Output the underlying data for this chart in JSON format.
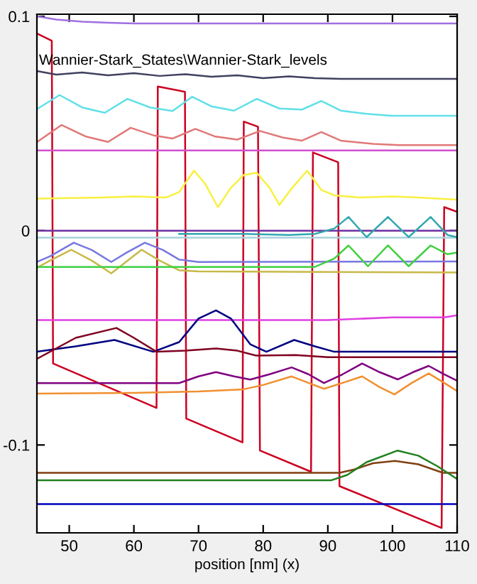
{
  "chart_data": {
    "type": "line",
    "xlabel": "position [nm] (x)",
    "annotations": [
      "Wannier-Stark_States\\Wannier-Stark_levels"
    ],
    "xlim": [
      45,
      110
    ],
    "ylim": [
      -0.141,
      0.101
    ],
    "xticks": [
      50,
      60,
      70,
      80,
      90,
      100,
      110
    ],
    "yticks": [
      -0.1,
      0,
      0.1
    ],
    "grid": false,
    "marker": "none",
    "line_style": "solid",
    "series": [
      {
        "color": "#cc0020",
        "x": [
          45,
          47.3,
          47.5,
          63.5,
          63.7,
          67.9,
          68.1,
          76.8,
          77,
          79.2,
          79.5,
          87.4,
          87.7,
          91.6,
          91.8,
          107.6,
          108,
          110
        ],
        "values": [
          0.092,
          0.0886,
          -0.062,
          -0.0827,
          0.0673,
          0.0648,
          -0.0877,
          -0.0988,
          0.0509,
          0.0485,
          -0.1026,
          -0.1125,
          0.0365,
          0.0319,
          -0.1192,
          -0.1387,
          0.011,
          0.0088
        ]
      },
      {
        "color": "#a070e0",
        "x": [
          45,
          48,
          52,
          56,
          60,
          110
        ],
        "values": [
          0.1,
          0.0985,
          0.0975,
          0.097,
          0.0967,
          0.0967
        ]
      },
      {
        "color": "#404060",
        "x": [
          45,
          48,
          52,
          56,
          60,
          64,
          68,
          72,
          76,
          80,
          84,
          88,
          92,
          110
        ],
        "values": [
          0.0745,
          0.0728,
          0.0738,
          0.0725,
          0.0735,
          0.0722,
          0.073,
          0.0718,
          0.0725,
          0.0712,
          0.072,
          0.0712,
          0.0708,
          0.0708
        ]
      },
      {
        "color": "#60e0e8",
        "x": [
          45,
          48.5,
          52,
          55.5,
          59,
          62.5,
          66,
          69,
          72,
          75.5,
          79,
          82.5,
          86,
          89,
          92,
          96,
          100,
          110
        ],
        "values": [
          0.0567,
          0.0633,
          0.0575,
          0.055,
          0.0615,
          0.0575,
          0.0558,
          0.0625,
          0.058,
          0.056,
          0.0615,
          0.057,
          0.0565,
          0.0605,
          0.056,
          0.0545,
          0.0536,
          0.0536
        ]
      },
      {
        "color": "#e07878",
        "x": [
          45,
          48.8,
          52.5,
          56,
          59.5,
          63,
          66,
          69.5,
          72.5,
          76,
          79.5,
          83,
          86,
          89,
          92,
          97,
          101,
          110
        ],
        "values": [
          0.0413,
          0.0493,
          0.044,
          0.0414,
          0.048,
          0.0445,
          0.043,
          0.0475,
          0.044,
          0.0425,
          0.0465,
          0.0435,
          0.042,
          0.046,
          0.042,
          0.0405,
          0.0399,
          0.0399
        ]
      },
      {
        "color": "#d050d0",
        "x": [
          45,
          110
        ],
        "values": [
          0.0374,
          0.0374
        ]
      },
      {
        "color": "#f8f040",
        "x": [
          45,
          55,
          60,
          65,
          67,
          69.3,
          71,
          73,
          75,
          77,
          79,
          81,
          82.5,
          84.5,
          86.8,
          89,
          91,
          95,
          100,
          104,
          110
        ],
        "values": [
          0.015,
          0.0155,
          0.016,
          0.0155,
          0.018,
          0.028,
          0.022,
          0.011,
          0.02,
          0.026,
          0.027,
          0.02,
          0.012,
          0.02,
          0.028,
          0.019,
          0.0165,
          0.0155,
          0.016,
          0.0155,
          0.0145
        ]
      },
      {
        "color": "#7030a0",
        "x": [
          45,
          110
        ],
        "values": [
          0,
          0
        ]
      },
      {
        "color": "#a8d0dc",
        "x": [
          45,
          110
        ],
        "values": [
          -0.0033,
          -0.0033
        ]
      },
      {
        "color": "#30a8b0",
        "x": [
          67,
          77,
          84,
          88,
          91,
          93.2,
          96,
          99.3,
          102.5,
          105.9,
          108.5,
          110
        ],
        "values": [
          -0.0015,
          -0.0015,
          -0.002,
          -0.0015,
          0.001,
          0.0064,
          -0.003,
          0.0064,
          -0.003,
          0.0064,
          -0.002,
          -0.003
        ]
      },
      {
        "color": "#7878e0",
        "x": [
          45,
          47,
          50.7,
          53.5,
          56.5,
          59,
          61.7,
          64.5,
          67,
          70,
          110
        ],
        "values": [
          -0.0146,
          -0.012,
          -0.0056,
          -0.009,
          -0.0146,
          -0.01,
          -0.0056,
          -0.009,
          -0.0135,
          -0.0146,
          -0.0144
        ]
      },
      {
        "color": "#c8b848",
        "x": [
          45,
          47,
          50.3,
          53.5,
          56.5,
          59,
          61.2,
          64,
          67,
          70,
          110
        ],
        "values": [
          -0.0173,
          -0.014,
          -0.0089,
          -0.014,
          -0.0199,
          -0.014,
          -0.0089,
          -0.014,
          -0.0185,
          -0.019,
          -0.0195
        ]
      },
      {
        "color": "#40d040",
        "x": [
          45,
          88,
          91,
          93.2,
          96.2,
          99.3,
          102.5,
          105.9,
          108.5,
          110
        ],
        "values": [
          -0.0169,
          -0.0169,
          -0.013,
          -0.0069,
          -0.0166,
          -0.0069,
          -0.0166,
          -0.0069,
          -0.011,
          -0.0102
        ]
      },
      {
        "color": "#e040e0",
        "x": [
          45,
          90,
          100,
          108,
          110
        ],
        "values": [
          -0.0417,
          -0.0417,
          -0.0405,
          -0.0405,
          -0.0395
        ]
      },
      {
        "color": "#000080",
        "x": [
          45,
          51,
          57,
          63,
          67,
          70,
          72.7,
          75,
          78,
          80.5,
          84.8,
          88,
          91,
          110
        ],
        "values": [
          -0.0565,
          -0.054,
          -0.051,
          -0.0565,
          -0.052,
          -0.041,
          -0.0372,
          -0.041,
          -0.053,
          -0.0565,
          -0.051,
          -0.054,
          -0.0565,
          -0.0565
        ]
      },
      {
        "color": "#800020",
        "x": [
          45,
          51,
          57.3,
          60,
          63.5,
          68,
          72.7,
          76,
          78.9,
          85,
          90,
          110
        ],
        "values": [
          -0.0598,
          -0.05,
          -0.0454,
          -0.05,
          -0.0565,
          -0.056,
          -0.055,
          -0.056,
          -0.0583,
          -0.058,
          -0.059,
          -0.059
        ]
      },
      {
        "color": "#800080",
        "x": [
          45,
          67,
          70,
          72.7,
          75.5,
          78,
          81,
          84.4,
          87,
          89.4,
          92.3,
          95.3,
          98,
          100.8,
          103.2,
          105.6,
          108,
          110
        ],
        "values": [
          -0.0711,
          -0.0711,
          -0.068,
          -0.066,
          -0.068,
          -0.0695,
          -0.067,
          -0.0638,
          -0.067,
          -0.0711,
          -0.067,
          -0.062,
          -0.066,
          -0.0694,
          -0.066,
          -0.0631,
          -0.067,
          -0.07
        ]
      },
      {
        "color": "#f09030",
        "x": [
          45,
          60,
          70,
          77,
          80,
          84.4,
          87,
          89.4,
          92.3,
          95.3,
          98,
          100.3,
          103,
          105.6,
          108,
          110
        ],
        "values": [
          -0.076,
          -0.0757,
          -0.075,
          -0.074,
          -0.072,
          -0.068,
          -0.071,
          -0.0738,
          -0.071,
          -0.068,
          -0.073,
          -0.0764,
          -0.071,
          -0.0666,
          -0.071,
          -0.0749
        ]
      },
      {
        "color": "#804010",
        "x": [
          45,
          91.8,
          94,
          97,
          100.4,
          104,
          107.8,
          110
        ],
        "values": [
          -0.113,
          -0.113,
          -0.1115,
          -0.1085,
          -0.1074,
          -0.109,
          -0.113,
          -0.113
        ]
      },
      {
        "color": "#208020",
        "x": [
          45,
          90.5,
          93,
          96,
          100.8,
          104,
          107,
          110
        ],
        "values": [
          -0.1165,
          -0.1165,
          -0.114,
          -0.108,
          -0.1026,
          -0.105,
          -0.11,
          -0.1159
        ]
      },
      {
        "color": "#0000c0",
        "x": [
          45,
          110
        ],
        "values": [
          -0.1276,
          -0.1276
        ]
      }
    ]
  }
}
